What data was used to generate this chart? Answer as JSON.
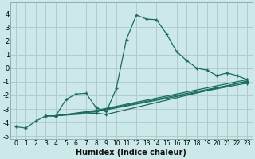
{
  "background_color": "#cce8e8",
  "grid_color": "#b0cccc",
  "line_color": "#1a6b5a",
  "xlabel": "Humidex (Indice chaleur)",
  "xlim": [
    -0.5,
    23.5
  ],
  "ylim": [
    -5.2,
    4.8
  ],
  "yticks": [
    -5,
    -4,
    -3,
    -2,
    -1,
    0,
    1,
    2,
    3,
    4
  ],
  "xticks": [
    0,
    1,
    2,
    3,
    4,
    5,
    6,
    7,
    8,
    9,
    10,
    11,
    12,
    13,
    14,
    15,
    16,
    17,
    18,
    19,
    20,
    21,
    22,
    23
  ],
  "series": [
    {
      "x": [
        0,
        1,
        2,
        3,
        4,
        5,
        6,
        7,
        8,
        9,
        10,
        11,
        12,
        13,
        14,
        15,
        16,
        17,
        18,
        19,
        20,
        21,
        22,
        23
      ],
      "y": [
        -4.3,
        -4.4,
        -3.9,
        -3.5,
        -3.5,
        -2.3,
        -1.9,
        -1.85,
        -2.9,
        -3.2,
        -1.5,
        2.1,
        3.9,
        3.6,
        3.55,
        2.5,
        1.2,
        0.55,
        0.0,
        -0.15,
        -0.55,
        -0.35,
        -0.55,
        -0.85
      ]
    },
    {
      "x": [
        3,
        4,
        8,
        23
      ],
      "y": [
        -3.5,
        -3.5,
        -3.1,
        -0.85
      ]
    },
    {
      "x": [
        3,
        4,
        8,
        23
      ],
      "y": [
        -3.5,
        -3.5,
        -3.15,
        -1.0
      ]
    },
    {
      "x": [
        3,
        4,
        8,
        23
      ],
      "y": [
        -3.5,
        -3.5,
        -3.2,
        -1.1
      ]
    },
    {
      "x": [
        3,
        4,
        8,
        9,
        23
      ],
      "y": [
        -3.5,
        -3.5,
        -3.3,
        -3.4,
        -0.95
      ]
    }
  ]
}
